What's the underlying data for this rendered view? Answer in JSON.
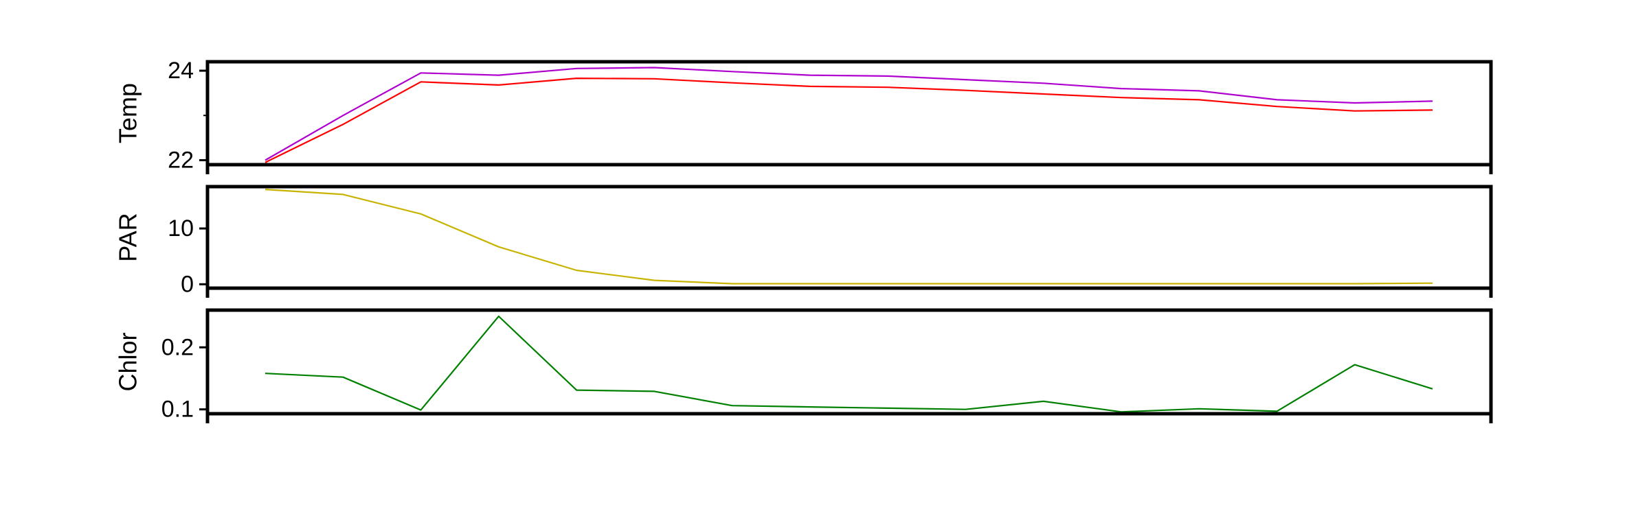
{
  "chart_data": [
    {
      "type": "line",
      "ylabel": "Temp",
      "ylim": [
        21.9,
        24.2
      ],
      "yticks": [
        22,
        24
      ],
      "ytick_labels": [
        "22",
        "24"
      ],
      "minor_yticks": [
        23
      ],
      "x": [
        1,
        2,
        3,
        4,
        5,
        6,
        7,
        8,
        9,
        10,
        11,
        12,
        13,
        14,
        15,
        16
      ],
      "series": [
        {
          "color": "#b000d0",
          "values": [
            22.0,
            23.0,
            23.95,
            23.9,
            24.05,
            24.07,
            23.98,
            23.9,
            23.88,
            23.8,
            23.72,
            23.6,
            23.55,
            23.35,
            23.28,
            23.32
          ]
        },
        {
          "color": "#ff0000",
          "values": [
            21.95,
            22.8,
            23.75,
            23.68,
            23.83,
            23.82,
            23.73,
            23.65,
            23.63,
            23.56,
            23.48,
            23.4,
            23.35,
            23.2,
            23.1,
            23.12
          ]
        }
      ]
    },
    {
      "type": "line",
      "ylabel": "PAR",
      "ylim": [
        -0.7,
        17.5
      ],
      "yticks": [
        0,
        10
      ],
      "ytick_labels": [
        "0",
        "10"
      ],
      "x": [
        1,
        2,
        3,
        4,
        5,
        6,
        7,
        8,
        9,
        10,
        11,
        12,
        13,
        14,
        15,
        16
      ],
      "series": [
        {
          "color": "#c8b400",
          "values": [
            17.0,
            16.1,
            12.6,
            6.7,
            2.5,
            0.7,
            0.1,
            0.1,
            0.1,
            0.1,
            0.1,
            0.1,
            0.1,
            0.1,
            0.1,
            0.2
          ]
        }
      ]
    },
    {
      "type": "line",
      "ylabel": "Chlor",
      "ylim": [
        0.093,
        0.26
      ],
      "yticks": [
        0.1,
        0.2
      ],
      "ytick_labels": [
        "0.1",
        "0.2"
      ],
      "x": [
        1,
        2,
        3,
        4,
        5,
        6,
        7,
        8,
        9,
        10,
        11,
        12,
        13,
        14,
        15,
        16
      ],
      "series": [
        {
          "color": "#008000",
          "values": [
            0.158,
            0.152,
            0.099,
            0.25,
            0.131,
            0.129,
            0.106,
            0.104,
            0.102,
            0.1,
            0.113,
            0.096,
            0.101,
            0.097,
            0.172,
            0.133
          ]
        }
      ]
    }
  ]
}
